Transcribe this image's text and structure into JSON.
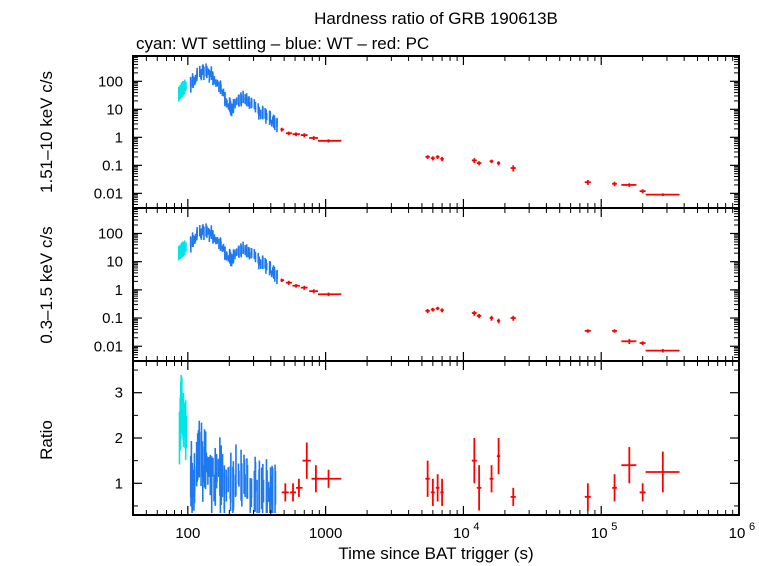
{
  "chart_data": {
    "type": "scatter",
    "title": "Hardness ratio of GRB 190613B",
    "subtitle": "cyan: WT settling – blue: WT – red: PC",
    "xlabel": "Time since BAT trigger (s)",
    "xscale": "log",
    "xlim": [
      40,
      1000000
    ],
    "x_tick_labels": [
      "100",
      "1000",
      "10",
      "10",
      "10"
    ],
    "x_tick_exponents": [
      "",
      "",
      "4",
      "5",
      "6"
    ],
    "colors": {
      "settling": "#00e5e5",
      "wt": "#1e78f0",
      "pc": "#ff0000"
    },
    "panels": [
      {
        "ylabel": "1.51–10 keV c/s",
        "yscale": "log",
        "ylim": [
          0.003,
          800
        ],
        "y_tick_labels": [
          "100",
          "10",
          "1",
          "0.1",
          "0.01"
        ],
        "settling": [
          [
            86,
            35
          ],
          [
            90,
            48
          ],
          [
            94,
            60
          ],
          [
            98,
            72
          ]
        ],
        "wt_curve": [
          [
            104,
            75
          ],
          [
            112,
            120
          ],
          [
            122,
            200
          ],
          [
            132,
            230
          ],
          [
            145,
            180
          ],
          [
            160,
            110
          ],
          [
            175,
            50
          ],
          [
            195,
            15
          ],
          [
            210,
            10
          ],
          [
            230,
            20
          ],
          [
            250,
            25
          ],
          [
            270,
            20
          ],
          [
            300,
            13
          ],
          [
            340,
            8
          ],
          [
            380,
            5
          ],
          [
            420,
            3.5
          ],
          [
            450,
            3
          ]
        ],
        "pc": [
          {
            "x": 480,
            "y": 1.9,
            "xerr": [
              470,
              500
            ],
            "yerr": [
              1.6,
              2.2
            ]
          },
          {
            "x": 540,
            "y": 1.4,
            "xerr": [
              515,
              570
            ],
            "yerr": [
              1.2,
              1.6
            ]
          },
          {
            "x": 610,
            "y": 1.3,
            "xerr": [
              575,
              650
            ],
            "yerr": [
              1.1,
              1.5
            ]
          },
          {
            "x": 700,
            "y": 1.2,
            "xerr": [
              660,
              740
            ],
            "yerr": [
              1.0,
              1.4
            ]
          },
          {
            "x": 820,
            "y": 0.95,
            "xerr": [
              760,
              880
            ],
            "yerr": [
              0.8,
              1.1
            ]
          },
          {
            "x": 1050,
            "y": 0.75,
            "xerr": [
              880,
              1300
            ],
            "yerr": [
              0.65,
              0.85
            ]
          },
          {
            "x": 5500,
            "y": 0.2,
            "xerr": [
              5300,
              5700
            ],
            "yerr": [
              0.17,
              0.23
            ]
          },
          {
            "x": 6000,
            "y": 0.18,
            "xerr": [
              5800,
              6200
            ],
            "yerr": [
              0.15,
              0.21
            ]
          },
          {
            "x": 6500,
            "y": 0.2,
            "xerr": [
              6300,
              6700
            ],
            "yerr": [
              0.17,
              0.23
            ]
          },
          {
            "x": 7000,
            "y": 0.17,
            "xerr": [
              6800,
              7200
            ],
            "yerr": [
              0.14,
              0.2
            ]
          },
          {
            "x": 12000,
            "y": 0.15,
            "xerr": [
              11500,
              12500
            ],
            "yerr": [
              0.12,
              0.18
            ]
          },
          {
            "x": 13000,
            "y": 0.12,
            "xerr": [
              12500,
              13500
            ],
            "yerr": [
              0.1,
              0.14
            ]
          },
          {
            "x": 16000,
            "y": 0.14,
            "xerr": [
              15500,
              16500
            ],
            "yerr": [
              0.12,
              0.16
            ]
          },
          {
            "x": 18000,
            "y": 0.12,
            "xerr": [
              17500,
              18500
            ],
            "yerr": [
              0.1,
              0.14
            ]
          },
          {
            "x": 23000,
            "y": 0.08,
            "xerr": [
              22000,
              24000
            ],
            "yerr": [
              0.06,
              0.1
            ]
          },
          {
            "x": 80000,
            "y": 0.025,
            "xerr": [
              76000,
              84000
            ],
            "yerr": [
              0.02,
              0.03
            ]
          },
          {
            "x": 125000,
            "y": 0.022,
            "xerr": [
              120000,
              130000
            ],
            "yerr": [
              0.018,
              0.026
            ]
          },
          {
            "x": 160000,
            "y": 0.02,
            "xerr": [
              140000,
              180000
            ],
            "yerr": [
              0.017,
              0.023
            ]
          },
          {
            "x": 200000,
            "y": 0.012,
            "xerr": [
              190000,
              210000
            ],
            "yerr": [
              0.01,
              0.014
            ]
          },
          {
            "x": 280000,
            "y": 0.009,
            "xerr": [
              210000,
              370000
            ],
            "yerr": [
              0.008,
              0.01
            ]
          }
        ]
      },
      {
        "ylabel": "0.3–1.5 keV c/s",
        "yscale": "log",
        "ylim": [
          0.003,
          800
        ],
        "y_tick_labels": [
          "100",
          "10",
          "1",
          "0.1",
          "0.01"
        ],
        "settling": [
          [
            86,
            20
          ],
          [
            90,
            25
          ],
          [
            94,
            30
          ],
          [
            98,
            35
          ]
        ],
        "wt_curve": [
          [
            104,
            40
          ],
          [
            112,
            70
          ],
          [
            122,
            110
          ],
          [
            132,
            120
          ],
          [
            145,
            100
          ],
          [
            160,
            70
          ],
          [
            175,
            35
          ],
          [
            195,
            15
          ],
          [
            210,
            12
          ],
          [
            230,
            22
          ],
          [
            250,
            28
          ],
          [
            270,
            22
          ],
          [
            300,
            16
          ],
          [
            340,
            10
          ],
          [
            380,
            6
          ],
          [
            420,
            4
          ],
          [
            450,
            3
          ]
        ],
        "pc": [
          {
            "x": 480,
            "y": 2.2,
            "xerr": [
              470,
              500
            ],
            "yerr": [
              1.9,
              2.5
            ]
          },
          {
            "x": 540,
            "y": 1.8,
            "xerr": [
              515,
              570
            ],
            "yerr": [
              1.5,
              2.1
            ]
          },
          {
            "x": 610,
            "y": 1.4,
            "xerr": [
              575,
              650
            ],
            "yerr": [
              1.2,
              1.6
            ]
          },
          {
            "x": 700,
            "y": 1.2,
            "xerr": [
              660,
              740
            ],
            "yerr": [
              1.0,
              1.4
            ]
          },
          {
            "x": 820,
            "y": 0.9,
            "xerr": [
              760,
              880
            ],
            "yerr": [
              0.75,
              1.05
            ]
          },
          {
            "x": 1050,
            "y": 0.7,
            "xerr": [
              880,
              1300
            ],
            "yerr": [
              0.6,
              0.8
            ]
          },
          {
            "x": 5500,
            "y": 0.18,
            "xerr": [
              5300,
              5700
            ],
            "yerr": [
              0.15,
              0.21
            ]
          },
          {
            "x": 6000,
            "y": 0.2,
            "xerr": [
              5800,
              6200
            ],
            "yerr": [
              0.17,
              0.23
            ]
          },
          {
            "x": 6500,
            "y": 0.22,
            "xerr": [
              6300,
              6700
            ],
            "yerr": [
              0.19,
              0.25
            ]
          },
          {
            "x": 7000,
            "y": 0.19,
            "xerr": [
              6800,
              7200
            ],
            "yerr": [
              0.16,
              0.22
            ]
          },
          {
            "x": 12000,
            "y": 0.15,
            "xerr": [
              11500,
              12500
            ],
            "yerr": [
              0.12,
              0.18
            ]
          },
          {
            "x": 13000,
            "y": 0.12,
            "xerr": [
              12500,
              13500
            ],
            "yerr": [
              0.1,
              0.14
            ]
          },
          {
            "x": 16000,
            "y": 0.1,
            "xerr": [
              15500,
              16500
            ],
            "yerr": [
              0.08,
              0.12
            ]
          },
          {
            "x": 18000,
            "y": 0.08,
            "xerr": [
              17500,
              18500
            ],
            "yerr": [
              0.065,
              0.095
            ]
          },
          {
            "x": 23000,
            "y": 0.1,
            "xerr": [
              22000,
              24000
            ],
            "yerr": [
              0.08,
              0.12
            ]
          },
          {
            "x": 80000,
            "y": 0.035,
            "xerr": [
              76000,
              84000
            ],
            "yerr": [
              0.03,
              0.04
            ]
          },
          {
            "x": 125000,
            "y": 0.035,
            "xerr": [
              120000,
              130000
            ],
            "yerr": [
              0.03,
              0.04
            ]
          },
          {
            "x": 160000,
            "y": 0.015,
            "xerr": [
              140000,
              180000
            ],
            "yerr": [
              0.012,
              0.018
            ]
          },
          {
            "x": 200000,
            "y": 0.013,
            "xerr": [
              190000,
              210000
            ],
            "yerr": [
              0.011,
              0.015
            ]
          },
          {
            "x": 280000,
            "y": 0.007,
            "xerr": [
              210000,
              370000
            ],
            "yerr": [
              0.006,
              0.008
            ]
          }
        ]
      },
      {
        "ylabel": "Ratio",
        "yscale": "linear",
        "ylim": [
          0.3,
          3.7
        ],
        "y_tick_labels": [
          "3",
          "2",
          "1"
        ],
        "settling": [
          [
            87,
            2.0
          ],
          [
            89,
            2.6
          ],
          [
            90,
            2.9
          ],
          [
            92,
            2.3
          ],
          [
            94,
            2.5
          ],
          [
            96,
            2.2
          ],
          [
            98,
            2.1
          ]
        ],
        "wt_curve": [
          [
            105,
            1.2
          ],
          [
            110,
            0.8
          ],
          [
            115,
            1.6
          ],
          [
            122,
            1.7
          ],
          [
            130,
            1.4
          ],
          [
            140,
            1.3
          ],
          [
            150,
            1.1
          ],
          [
            165,
            1.2
          ],
          [
            180,
            1.0
          ],
          [
            200,
            1.0
          ],
          [
            220,
            1.1
          ],
          [
            250,
            1.0
          ],
          [
            280,
            0.9
          ],
          [
            320,
            0.9
          ],
          [
            360,
            0.85
          ],
          [
            400,
            0.8
          ],
          [
            440,
            0.8
          ]
        ],
        "pc": [
          {
            "x": 510,
            "y": 0.8,
            "xerr": [
              480,
              540
            ],
            "yerr": [
              0.6,
              1.0
            ]
          },
          {
            "x": 580,
            "y": 0.8,
            "xerr": [
              550,
              610
            ],
            "yerr": [
              0.6,
              1.0
            ]
          },
          {
            "x": 640,
            "y": 0.9,
            "xerr": [
              610,
              680
            ],
            "yerr": [
              0.7,
              1.1
            ]
          },
          {
            "x": 730,
            "y": 1.5,
            "xerr": [
              680,
              780
            ],
            "yerr": [
              1.1,
              1.9
            ]
          },
          {
            "x": 850,
            "y": 1.1,
            "xerr": [
              790,
              910
            ],
            "yerr": [
              0.8,
              1.4
            ]
          },
          {
            "x": 1050,
            "y": 1.1,
            "xerr": [
              910,
              1300
            ],
            "yerr": [
              0.9,
              1.3
            ]
          },
          {
            "x": 5500,
            "y": 1.1,
            "xerr": [
              5300,
              5700
            ],
            "yerr": [
              0.7,
              1.5
            ]
          },
          {
            "x": 6000,
            "y": 0.8,
            "xerr": [
              5800,
              6200
            ],
            "yerr": [
              0.5,
              1.1
            ]
          },
          {
            "x": 6500,
            "y": 0.9,
            "xerr": [
              6300,
              6700
            ],
            "yerr": [
              0.6,
              1.2
            ]
          },
          {
            "x": 7000,
            "y": 0.8,
            "xerr": [
              6800,
              7200
            ],
            "yerr": [
              0.5,
              1.1
            ]
          },
          {
            "x": 12000,
            "y": 1.5,
            "xerr": [
              11500,
              12500
            ],
            "yerr": [
              1.0,
              2.0
            ]
          },
          {
            "x": 13000,
            "y": 0.9,
            "xerr": [
              12500,
              13500
            ],
            "yerr": [
              0.4,
              1.4
            ]
          },
          {
            "x": 16000,
            "y": 1.1,
            "xerr": [
              15500,
              16500
            ],
            "yerr": [
              0.8,
              1.4
            ]
          },
          {
            "x": 18000,
            "y": 1.6,
            "xerr": [
              17500,
              18500
            ],
            "yerr": [
              1.2,
              2.0
            ]
          },
          {
            "x": 23000,
            "y": 0.7,
            "xerr": [
              22000,
              24000
            ],
            "yerr": [
              0.5,
              0.9
            ]
          },
          {
            "x": 80000,
            "y": 0.7,
            "xerr": [
              76000,
              84000
            ],
            "yerr": [
              0.4,
              1.0
            ]
          },
          {
            "x": 125000,
            "y": 0.9,
            "xerr": [
              120000,
              130000
            ],
            "yerr": [
              0.6,
              1.2
            ]
          },
          {
            "x": 160000,
            "y": 1.4,
            "xerr": [
              140000,
              180000
            ],
            "yerr": [
              1.0,
              1.8
            ]
          },
          {
            "x": 200000,
            "y": 0.8,
            "xerr": [
              190000,
              210000
            ],
            "yerr": [
              0.6,
              1.0
            ]
          },
          {
            "x": 280000,
            "y": 1.25,
            "xerr": [
              210000,
              370000
            ],
            "yerr": [
              0.8,
              1.7
            ]
          }
        ]
      }
    ]
  }
}
